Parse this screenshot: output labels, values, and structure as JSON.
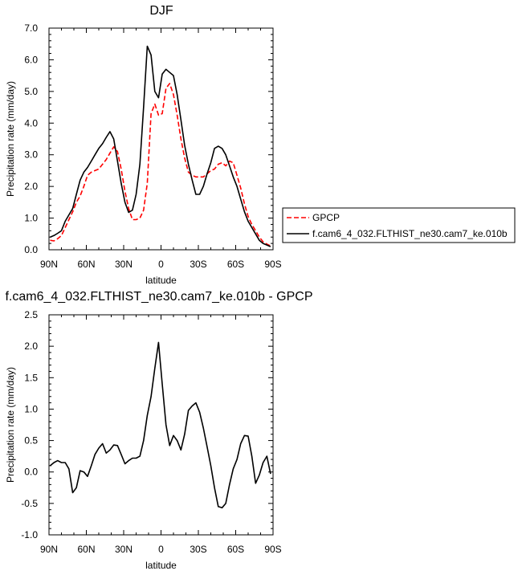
{
  "chart_data": [
    {
      "type": "line",
      "title": "DJF",
      "xlabel": "latitude",
      "ylabel": "Precipitation rate (mm/day)",
      "xlim": [
        90,
        -90
      ],
      "ylim": [
        0,
        7
      ],
      "x_ticks": [
        90,
        60,
        30,
        0,
        -30,
        -60,
        -90
      ],
      "x_tick_labels": [
        "90N",
        "60N",
        "30N",
        "0",
        "30S",
        "60S",
        "90S"
      ],
      "y_ticks": [
        0,
        1,
        2,
        3,
        4,
        5,
        6,
        7
      ],
      "y_tick_labels": [
        "0.0",
        "1.0",
        "2.0",
        "3.0",
        "4.0",
        "5.0",
        "6.0",
        "7.0"
      ],
      "grid": false,
      "legend_position": "right",
      "series": [
        {
          "name": "GPCP",
          "color": "#ff0000",
          "dashed": true,
          "x": [
            89,
            86,
            83,
            80,
            77,
            74,
            71,
            68,
            65,
            62,
            59,
            56,
            53,
            50,
            47,
            44,
            41,
            38,
            35,
            32,
            29,
            26,
            23,
            20,
            17,
            14,
            11,
            8,
            5,
            2,
            -1,
            -4,
            -7,
            -10,
            -13,
            -16,
            -19,
            -22,
            -25,
            -28,
            -31,
            -34,
            -37,
            -40,
            -43,
            -46,
            -49,
            -52,
            -55,
            -58,
            -61,
            -64,
            -67,
            -70,
            -73,
            -76,
            -79,
            -82,
            -85,
            -88
          ],
          "y": [
            0.3,
            0.28,
            0.35,
            0.45,
            0.7,
            0.95,
            1.2,
            1.5,
            1.7,
            2.0,
            2.35,
            2.45,
            2.5,
            2.55,
            2.7,
            2.85,
            3.05,
            3.25,
            3.1,
            2.55,
            1.85,
            1.3,
            0.95,
            0.95,
            1.0,
            1.25,
            2.1,
            4.3,
            4.6,
            4.25,
            4.3,
            5.1,
            5.25,
            4.9,
            4.25,
            3.5,
            2.9,
            2.45,
            2.35,
            2.3,
            2.3,
            2.3,
            2.4,
            2.5,
            2.55,
            2.7,
            2.75,
            2.65,
            2.8,
            2.75,
            2.35,
            1.95,
            1.45,
            1.05,
            0.8,
            0.6,
            0.4,
            0.25,
            0.18,
            0.12
          ]
        },
        {
          "name": "f.cam6_4_032.FLTHIST_ne30.cam7_ke.010b",
          "color": "#000000",
          "dashed": false,
          "x": [
            89,
            86,
            83,
            80,
            77,
            74,
            71,
            68,
            65,
            62,
            59,
            56,
            53,
            50,
            47,
            44,
            41,
            38,
            35,
            32,
            29,
            26,
            23,
            20,
            17,
            14,
            11,
            8,
            5,
            2,
            -1,
            -4,
            -7,
            -10,
            -13,
            -16,
            -19,
            -22,
            -25,
            -28,
            -31,
            -34,
            -37,
            -40,
            -43,
            -46,
            -49,
            -52,
            -55,
            -58,
            -61,
            -64,
            -67,
            -70,
            -73,
            -76,
            -79,
            -82,
            -85,
            -88
          ],
          "y": [
            0.4,
            0.45,
            0.52,
            0.6,
            0.9,
            1.1,
            1.3,
            1.75,
            2.2,
            2.45,
            2.6,
            2.8,
            3.0,
            3.2,
            3.35,
            3.55,
            3.73,
            3.5,
            2.8,
            2.1,
            1.5,
            1.18,
            1.25,
            1.75,
            2.7,
            4.5,
            6.43,
            6.15,
            5.0,
            4.8,
            5.55,
            5.7,
            5.6,
            5.5,
            4.9,
            4.1,
            3.3,
            2.7,
            2.2,
            1.75,
            1.75,
            2.0,
            2.4,
            2.75,
            3.2,
            3.27,
            3.2,
            3.0,
            2.65,
            2.3,
            2.0,
            1.6,
            1.2,
            0.9,
            0.7,
            0.5,
            0.3,
            0.2,
            0.15,
            0.1
          ]
        }
      ]
    },
    {
      "type": "line",
      "title": "f.cam6_4_032.FLTHIST_ne30.cam7_ke.010b - GPCP",
      "xlabel": "latitude",
      "ylabel": "Precipitation rate (mm/day)",
      "xlim": [
        90,
        -90
      ],
      "ylim": [
        -1,
        2.5
      ],
      "x_ticks": [
        90,
        60,
        30,
        0,
        -30,
        -60,
        -90
      ],
      "x_tick_labels": [
        "90N",
        "60N",
        "30N",
        "0",
        "30S",
        "60S",
        "90S"
      ],
      "y_ticks": [
        -1,
        -0.5,
        0,
        0.5,
        1,
        1.5,
        2,
        2.5
      ],
      "y_tick_labels": [
        "-1.0",
        "-0.5",
        "0.0",
        "0.5",
        "1.0",
        "1.5",
        "2.0",
        "2.5"
      ],
      "grid": false,
      "series": [
        {
          "color": "#000000",
          "dashed": false,
          "x": [
            89,
            86,
            83,
            80,
            77,
            74,
            71,
            68,
            65,
            62,
            59,
            56,
            53,
            50,
            47,
            44,
            41,
            38,
            35,
            32,
            29,
            26,
            23,
            20,
            17,
            14,
            11,
            8,
            5,
            2,
            -1,
            -4,
            -7,
            -10,
            -13,
            -16,
            -19,
            -22,
            -25,
            -28,
            -31,
            -34,
            -37,
            -40,
            -43,
            -46,
            -49,
            -52,
            -55,
            -58,
            -61,
            -64,
            -67,
            -70,
            -73,
            -76,
            -79,
            -82,
            -85,
            -88
          ],
          "y": [
            0.1,
            0.15,
            0.18,
            0.15,
            0.15,
            0.05,
            -0.33,
            -0.25,
            0.02,
            0.0,
            -0.07,
            0.1,
            0.28,
            0.38,
            0.45,
            0.3,
            0.35,
            0.43,
            0.42,
            0.28,
            0.13,
            0.18,
            0.22,
            0.22,
            0.25,
            0.5,
            0.9,
            1.2,
            1.65,
            2.06,
            1.4,
            0.75,
            0.42,
            0.58,
            0.5,
            0.35,
            0.6,
            0.98,
            1.05,
            1.1,
            0.95,
            0.7,
            0.4,
            0.1,
            -0.25,
            -0.55,
            -0.57,
            -0.5,
            -0.2,
            0.05,
            0.2,
            0.45,
            0.58,
            0.57,
            0.25,
            -0.18,
            -0.05,
            0.15,
            0.25,
            -0.03
          ]
        }
      ]
    }
  ]
}
